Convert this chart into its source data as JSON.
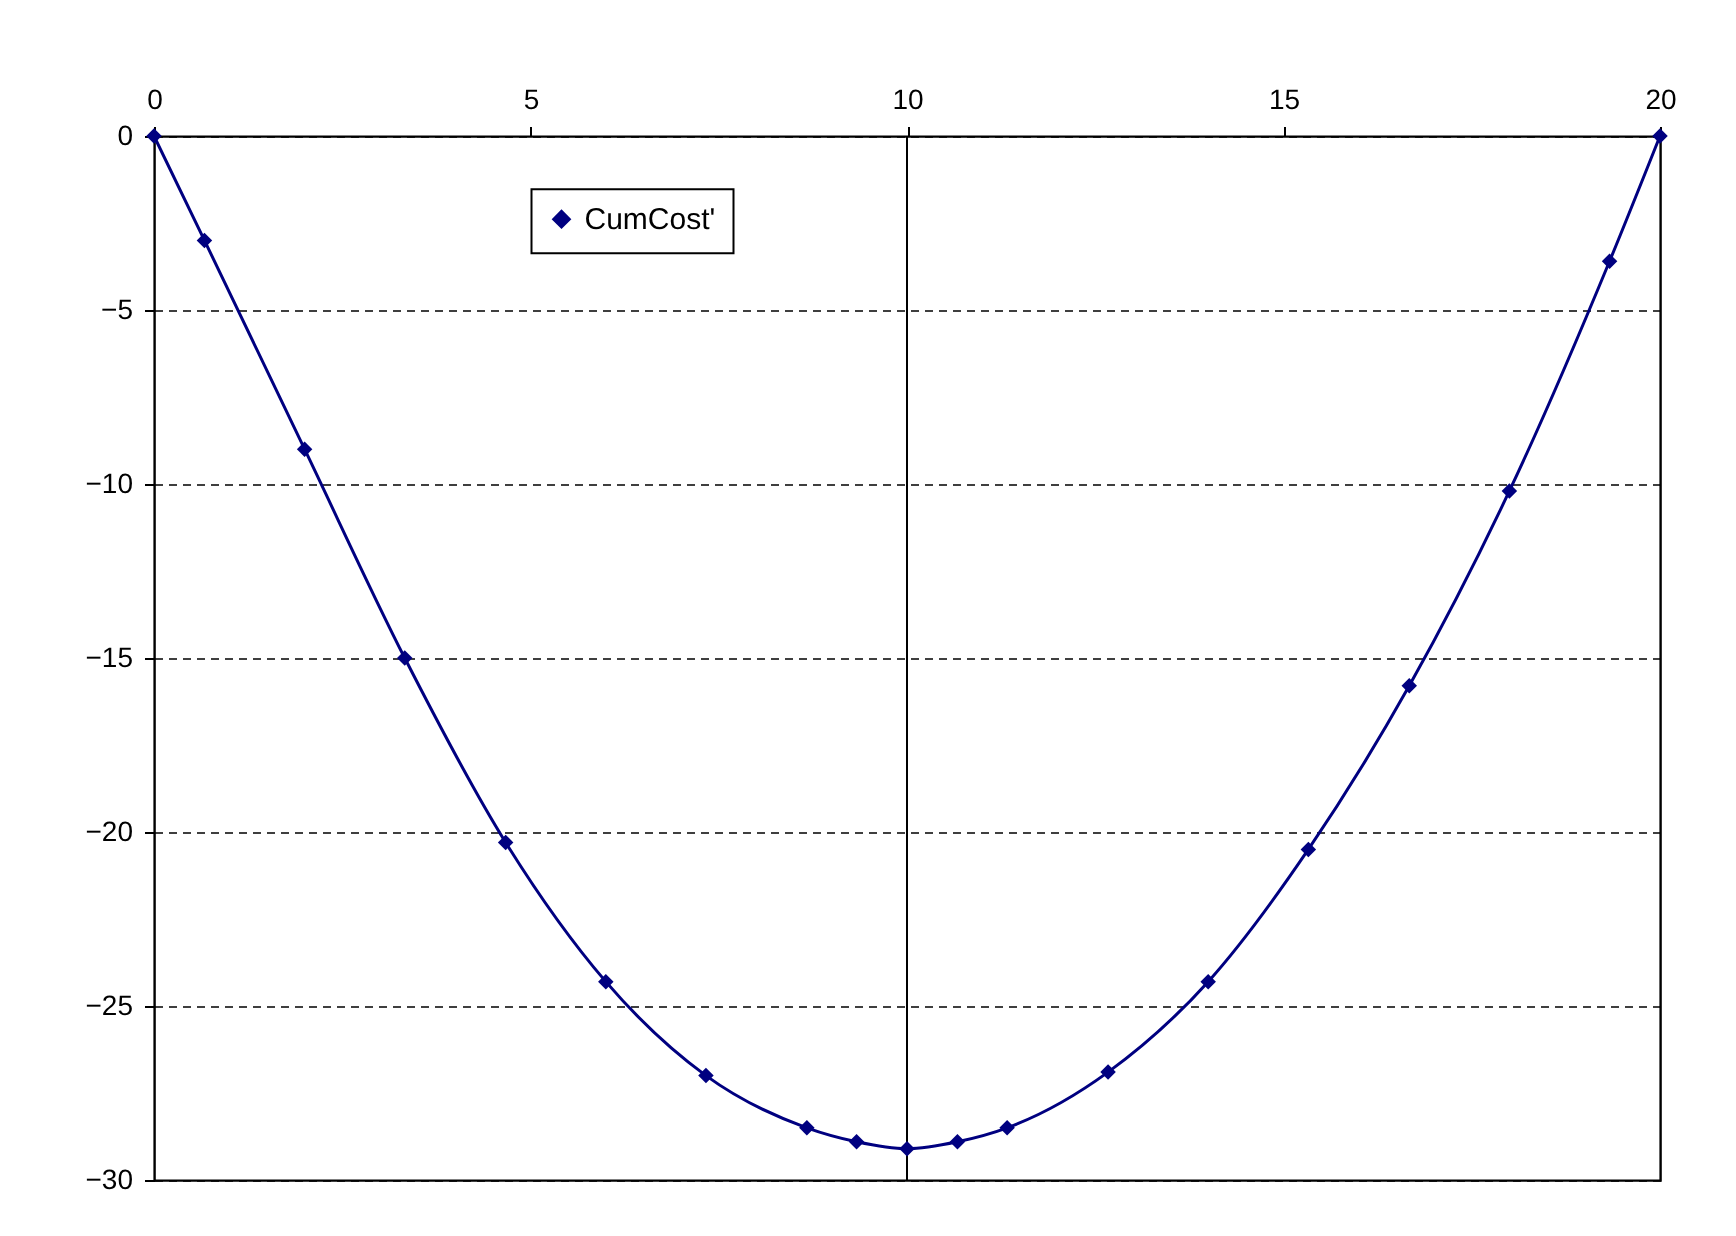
{
  "chart_data": {
    "type": "line",
    "x": [
      0,
      0.67,
      2,
      3.33,
      4.67,
      6,
      7.33,
      8.67,
      9.33,
      10,
      10.67,
      11.33,
      12.67,
      14,
      15.33,
      16.67,
      18,
      19.33,
      20
    ],
    "series": [
      {
        "name": "CumCost'",
        "color": "#000080",
        "values": [
          0,
          -3,
          -9,
          -15,
          -20.3,
          -24.3,
          -27,
          -28.5,
          -28.9,
          -29.1,
          -28.9,
          -28.5,
          -26.9,
          -24.3,
          -20.5,
          -15.8,
          -10.2,
          -3.6,
          0
        ]
      }
    ],
    "xlim": [
      0,
      20
    ],
    "xticks": [
      0,
      5,
      10,
      15,
      20
    ],
    "ylim": [
      -30,
      0
    ],
    "yticks": [
      0,
      -5,
      -10,
      -15,
      -20,
      -25,
      -30
    ],
    "ref_lines": [
      {
        "axis": "x",
        "value": 10,
        "color": "#000000"
      }
    ],
    "grid": "y",
    "legend": "top left",
    "marker": "diamond",
    "line_style": "solid"
  }
}
